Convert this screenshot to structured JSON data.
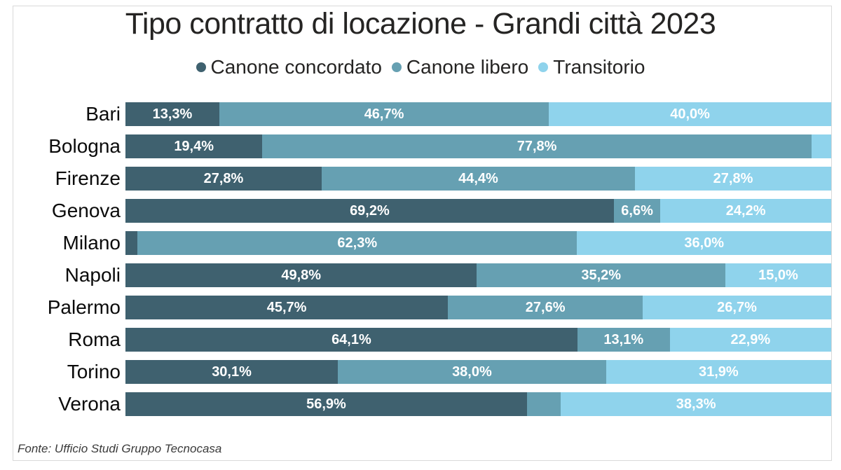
{
  "title": "Tipo contratto di locazione - Grandi città 2023",
  "source": "Fonte: Ufficio Studi Gruppo Tecnocasa",
  "colors": {
    "frame_border": "#d9d9d9",
    "title_text": "#252423",
    "bar_label_text": "#ffffff"
  },
  "chart_data": {
    "type": "bar",
    "orientation": "horizontal-stacked",
    "title": "Tipo contratto di locazione - Grandi città 2023",
    "legend_position": "top",
    "value_format": "percent with comma decimal",
    "xlim": [
      0,
      100
    ],
    "categories": [
      "Bari",
      "Bologna",
      "Firenze",
      "Genova",
      "Milano",
      "Napoli",
      "Palermo",
      "Roma",
      "Torino",
      "Verona"
    ],
    "series": [
      {
        "name": "Canone concordato",
        "color": "#3F616F",
        "values": [
          13.3,
          19.4,
          27.8,
          69.2,
          1.7,
          49.8,
          45.7,
          64.1,
          30.1,
          56.9
        ],
        "labels": [
          "13,3%",
          "19,4%",
          "27,8%",
          "69,2%",
          "",
          "49,8%",
          "45,7%",
          "64,1%",
          "30,1%",
          "56,9%"
        ]
      },
      {
        "name": "Canone libero",
        "color": "#66A0B2",
        "values": [
          46.7,
          77.8,
          44.4,
          6.6,
          62.3,
          35.2,
          27.6,
          13.1,
          38.0,
          4.8
        ],
        "labels": [
          "46,7%",
          "77,8%",
          "44,4%",
          "6,6%",
          "62,3%",
          "35,2%",
          "27,6%",
          "13,1%",
          "38,0%",
          ""
        ]
      },
      {
        "name": "Transitorio",
        "color": "#8FD3EC",
        "values": [
          40.0,
          2.8,
          27.8,
          24.2,
          36.0,
          15.0,
          26.7,
          22.9,
          31.9,
          38.3
        ],
        "labels": [
          "40,0%",
          "",
          "27,8%",
          "24,2%",
          "36,0%",
          "15,0%",
          "26,7%",
          "22,9%",
          "31,9%",
          "38,3%"
        ]
      }
    ]
  }
}
